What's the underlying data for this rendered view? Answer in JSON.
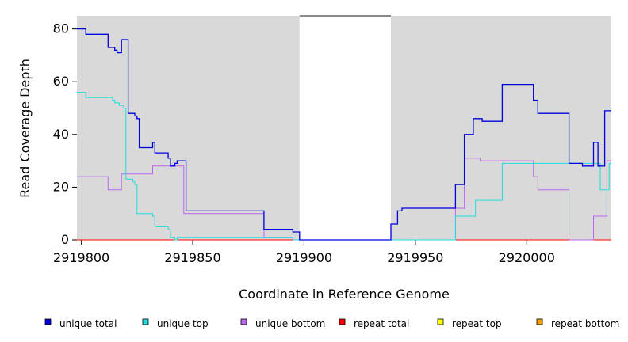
{
  "chart_data": {
    "type": "line",
    "step": true,
    "title": "",
    "xlabel": "Coordinate in Reference Genome",
    "ylabel": "Read Coverage Depth",
    "xlim": [
      2919798,
      2920038
    ],
    "ylim": [
      0,
      85
    ],
    "x_ticks": [
      2919800,
      2919850,
      2919900,
      2919950,
      2920000
    ],
    "x_tick_labels": [
      "2919800",
      "2919850",
      "2919900",
      "2919950",
      "2920000"
    ],
    "y_ticks": [
      0,
      20,
      40,
      60,
      80
    ],
    "y_tick_labels": [
      "0",
      "20",
      "40",
      "60",
      "80"
    ],
    "background": "#d9d9d9",
    "uncovered_region": [
      2919898,
      2919939
    ],
    "legend_position": "bottom",
    "series": [
      {
        "name": "unique total",
        "color": "#0000dd",
        "points": [
          [
            2919798,
            80
          ],
          [
            2919802,
            78
          ],
          [
            2919812,
            73
          ],
          [
            2919815,
            72
          ],
          [
            2919816,
            71
          ],
          [
            2919818,
            76
          ],
          [
            2919821,
            48
          ],
          [
            2919824,
            47
          ],
          [
            2919825,
            46
          ],
          [
            2919826,
            35
          ],
          [
            2919832,
            37
          ],
          [
            2919833,
            33
          ],
          [
            2919839,
            31
          ],
          [
            2919840,
            28
          ],
          [
            2919842,
            29
          ],
          [
            2919843,
            30
          ],
          [
            2919847,
            11
          ],
          [
            2919882,
            4
          ],
          [
            2919895,
            3
          ],
          [
            2919898,
            0
          ],
          [
            2919939,
            6
          ],
          [
            2919942,
            11
          ],
          [
            2919944,
            12
          ],
          [
            2919968,
            21
          ],
          [
            2919972,
            40
          ],
          [
            2919976,
            46
          ],
          [
            2919980,
            45
          ],
          [
            2919989,
            59
          ],
          [
            2920003,
            53
          ],
          [
            2920005,
            48
          ],
          [
            2920019,
            29
          ],
          [
            2920025,
            28
          ],
          [
            2920030,
            37
          ],
          [
            2920032,
            28
          ],
          [
            2920035,
            49
          ],
          [
            2920038,
            49
          ]
        ]
      },
      {
        "name": "unique top",
        "color": "#22dddd",
        "points": [
          [
            2919798,
            56
          ],
          [
            2919802,
            54
          ],
          [
            2919814,
            53
          ],
          [
            2919815,
            52
          ],
          [
            2919817,
            51
          ],
          [
            2919819,
            50
          ],
          [
            2919820,
            23
          ],
          [
            2919823,
            22
          ],
          [
            2919824,
            21
          ],
          [
            2919825,
            10
          ],
          [
            2919832,
            9
          ],
          [
            2919833,
            5
          ],
          [
            2919839,
            4
          ],
          [
            2919840,
            1
          ],
          [
            2919842,
            0
          ],
          [
            2919843,
            1
          ],
          [
            2919895,
            0
          ],
          [
            2919898,
            0
          ],
          [
            2919939,
            0
          ],
          [
            2919968,
            9
          ],
          [
            2919977,
            15
          ],
          [
            2919989,
            29
          ],
          [
            2920019,
            29
          ],
          [
            2920030,
            29
          ],
          [
            2920033,
            19
          ],
          [
            2920037,
            29
          ],
          [
            2920038,
            29
          ]
        ]
      },
      {
        "name": "unique bottom",
        "color": "#bb66ee",
        "points": [
          [
            2919798,
            24
          ],
          [
            2919812,
            19
          ],
          [
            2919818,
            25
          ],
          [
            2919832,
            28
          ],
          [
            2919846,
            10
          ],
          [
            2919882,
            1
          ],
          [
            2919895,
            0
          ],
          [
            2919898,
            0
          ],
          [
            2919939,
            0
          ],
          [
            2919968,
            12
          ],
          [
            2919972,
            31
          ],
          [
            2919979,
            30
          ],
          [
            2920003,
            24
          ],
          [
            2920005,
            19
          ],
          [
            2920019,
            0
          ],
          [
            2920030,
            9
          ],
          [
            2920036,
            30
          ],
          [
            2920038,
            30
          ]
        ]
      },
      {
        "name": "repeat total",
        "color": "#ff0000",
        "points": [
          [
            2919798,
            0
          ],
          [
            2919898,
            0
          ],
          [
            2919939,
            0
          ],
          [
            2920038,
            0
          ]
        ]
      },
      {
        "name": "repeat top",
        "color": "#ffff00",
        "points": [
          [
            2919798,
            0
          ],
          [
            2919898,
            0
          ],
          [
            2919939,
            0
          ],
          [
            2920038,
            0
          ]
        ]
      },
      {
        "name": "repeat bottom",
        "color": "#f5a000",
        "points": [
          [
            2919798,
            0
          ],
          [
            2919898,
            0
          ],
          [
            2919939,
            0
          ],
          [
            2920038,
            0
          ]
        ]
      }
    ]
  }
}
